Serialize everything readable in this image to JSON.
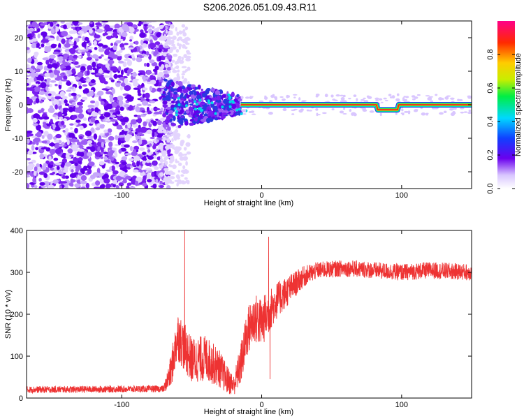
{
  "title": "S206.2026.051.09.43.R11",
  "chart_data": [
    {
      "type": "heatmap",
      "xlabel": "Height of straight line (km)",
      "ylabel": "Frequency (Hz)",
      "xlim": [
        -168,
        150
      ],
      "ylim": [
        -25,
        25
      ],
      "xticks": [
        -100,
        0,
        100
      ],
      "yticks": [
        -20,
        -10,
        0,
        10,
        20
      ],
      "xtick_labels": [
        "-100",
        "0",
        "100"
      ],
      "ytick_labels": [
        "-20",
        "-10",
        "0",
        "10",
        "20"
      ],
      "colorbar": {
        "label": "Normalized spectral amplitude",
        "range": [
          0,
          1
        ],
        "ticks": [
          0.0,
          0.2,
          0.4,
          0.6,
          0.8
        ],
        "tick_labels": [
          "0.0",
          "0.2",
          "0.4",
          "0.6",
          "0.8"
        ]
      },
      "description_regions": [
        {
          "x_range": [
            -168,
            -70
          ],
          "freq_range": [
            -25,
            25
          ],
          "amplitude": 0.1
        },
        {
          "x_range": [
            -70,
            -15
          ],
          "freq_range": [
            -8,
            6
          ],
          "amplitude": 0.15
        },
        {
          "x_range": [
            -15,
            150
          ],
          "freq_center": 0,
          "amplitude": 0.9
        }
      ],
      "carrier_line": [
        {
          "x": -15,
          "freq": 0
        },
        {
          "x": 82,
          "freq": 0
        },
        {
          "x": 83,
          "freq": -1.5
        },
        {
          "x": 97,
          "freq": -1.5
        },
        {
          "x": 98,
          "freq": 0
        },
        {
          "x": 150,
          "freq": 0
        }
      ]
    },
    {
      "type": "line",
      "xlabel": "Height of straight line (km)",
      "ylabel": "SNR (10 * v/v)",
      "xlim": [
        -168,
        150
      ],
      "ylim": [
        0,
        400
      ],
      "xticks": [
        -100,
        0,
        100
      ],
      "yticks": [
        0,
        100,
        200,
        300,
        400
      ],
      "xtick_labels": [
        "-100",
        "0",
        "100"
      ],
      "ytick_labels": [
        "0",
        "100",
        "200",
        "300",
        "400"
      ],
      "color": "#ee3333",
      "series": [
        {
          "name": "SNR",
          "envelope_x": [
            -168,
            -70,
            -65,
            -60,
            -50,
            -40,
            -30,
            -25,
            -20,
            -15,
            -10,
            -5,
            0,
            10,
            20,
            30,
            40,
            60,
            80,
            100,
            120,
            150
          ],
          "envelope_mean": [
            20,
            22,
            60,
            150,
            90,
            95,
            70,
            45,
            30,
            80,
            160,
            190,
            180,
            230,
            260,
            290,
            305,
            310,
            305,
            300,
            305,
            300
          ],
          "envelope_noise": [
            8,
            8,
            40,
            60,
            55,
            55,
            45,
            35,
            25,
            50,
            60,
            60,
            60,
            45,
            35,
            25,
            20,
            20,
            20,
            20,
            20,
            20
          ],
          "spikes": [
            {
              "x": -55,
              "y": 400
            },
            {
              "x": 5,
              "y": 385
            },
            {
              "x": 6,
              "y": 45
            }
          ]
        }
      ]
    }
  ]
}
